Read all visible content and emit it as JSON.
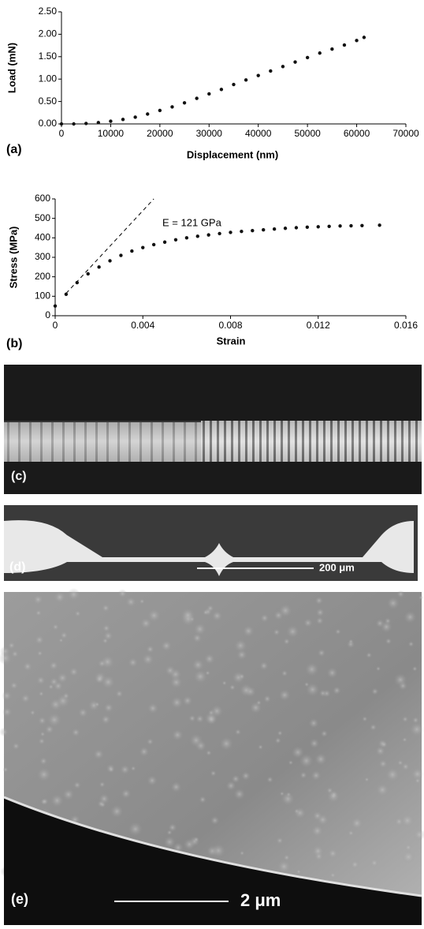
{
  "chart_data": [
    {
      "type": "scatter",
      "panel_label": "(a)",
      "x_label": "Displacement (nm)",
      "y_label": "Load (mN)",
      "xlim": [
        0,
        70000
      ],
      "xticks": [
        0,
        10000,
        20000,
        30000,
        40000,
        50000,
        60000,
        70000
      ],
      "ylim": [
        0,
        2.5
      ],
      "yticks": [
        {
          "value": 0,
          "label": "0.00"
        },
        {
          "value": 0.5,
          "label": "0.50"
        },
        {
          "value": 1,
          "label": "1.00"
        },
        {
          "value": 1.5,
          "label": "1.50"
        },
        {
          "value": 2,
          "label": "2.00"
        },
        {
          "value": 2.5,
          "label": "2.50"
        }
      ],
      "grid": false,
      "color": "#111111",
      "x": [
        0,
        2500,
        5000,
        7500,
        10000,
        12500,
        15000,
        17500,
        20000,
        22500,
        25000,
        27500,
        30000,
        32500,
        35000,
        37500,
        40000,
        42500,
        45000,
        47500,
        50000,
        52500,
        55000,
        57500,
        60000,
        61500
      ],
      "values": [
        0,
        0,
        0.01,
        0.03,
        0.06,
        0.1,
        0.15,
        0.22,
        0.3,
        0.38,
        0.47,
        0.57,
        0.67,
        0.77,
        0.88,
        0.98,
        1.08,
        1.18,
        1.28,
        1.38,
        1.48,
        1.58,
        1.67,
        1.76,
        1.86,
        1.93
      ]
    },
    {
      "type": "scatter",
      "panel_label": "(b)",
      "x_label": "Strain",
      "y_label": "Stress (MPa)",
      "xlim": [
        0,
        0.016
      ],
      "xticks": [
        0,
        0.004,
        0.008,
        0.012,
        0.016
      ],
      "ylim": [
        0,
        600
      ],
      "yticks": [
        0,
        100,
        200,
        300,
        400,
        500,
        600
      ],
      "grid": false,
      "color": "#111111",
      "x": [
        0,
        0.0005,
        0.001,
        0.0015,
        0.002,
        0.0025,
        0.003,
        0.0035,
        0.004,
        0.0045,
        0.005,
        0.0055,
        0.006,
        0.0065,
        0.007,
        0.0075,
        0.008,
        0.0085,
        0.009,
        0.0095,
        0.01,
        0.0105,
        0.011,
        0.0115,
        0.012,
        0.0125,
        0.013,
        0.0135,
        0.014,
        0.0148
      ],
      "values": [
        50,
        110,
        170,
        215,
        250,
        282,
        310,
        332,
        350,
        365,
        378,
        390,
        400,
        408,
        415,
        422,
        428,
        433,
        437,
        441,
        445,
        449,
        452,
        455,
        457,
        459,
        461,
        462,
        463,
        465
      ],
      "annotation": "E = 121 GPa",
      "fit_line": {
        "x": [
          0.0005,
          0.0045
        ],
        "y": [
          115,
          600
        ]
      }
    }
  ],
  "panels": [
    {
      "label": "(c)"
    },
    {
      "label": "(d)",
      "scale_bar": "200 μm"
    },
    {
      "label": "(e)",
      "scale_bar": "2 μm"
    }
  ]
}
